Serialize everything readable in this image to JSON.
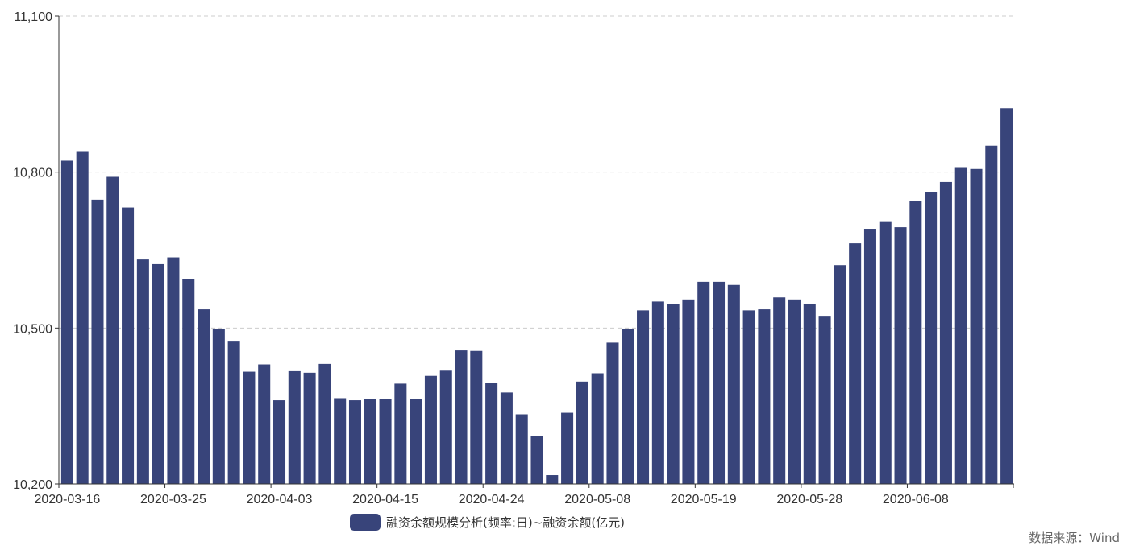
{
  "chart_data": {
    "type": "bar",
    "categories": [
      "2020-03-16",
      "2020-03-17",
      "2020-03-18",
      "2020-03-19",
      "2020-03-20",
      "2020-03-23",
      "2020-03-24",
      "2020-03-25",
      "2020-03-26",
      "2020-03-27",
      "2020-03-30",
      "2020-03-31",
      "2020-04-01",
      "2020-04-02",
      "2020-04-03",
      "2020-04-07",
      "2020-04-08",
      "2020-04-09",
      "2020-04-10",
      "2020-04-13",
      "2020-04-14",
      "2020-04-15",
      "2020-04-16",
      "2020-04-17",
      "2020-04-20",
      "2020-04-21",
      "2020-04-22",
      "2020-04-23",
      "2020-04-24",
      "2020-04-27",
      "2020-04-28",
      "2020-04-29",
      "2020-04-30",
      "2020-05-06",
      "2020-05-07",
      "2020-05-08",
      "2020-05-11",
      "2020-05-12",
      "2020-05-13",
      "2020-05-14",
      "2020-05-15",
      "2020-05-18",
      "2020-05-19",
      "2020-05-20",
      "2020-05-21",
      "2020-05-22",
      "2020-05-25",
      "2020-05-26",
      "2020-05-27",
      "2020-05-28",
      "2020-05-29",
      "2020-06-01",
      "2020-06-02",
      "2020-06-03",
      "2020-06-04",
      "2020-06-05",
      "2020-06-08",
      "2020-06-09",
      "2020-06-10",
      "2020-06-11",
      "2020-06-12",
      "2020-06-15",
      "2020-06-16"
    ],
    "series": [
      {
        "name": "融资余额规模分析(频率:日)~融资余额(亿元)",
        "values": [
          10822,
          10839,
          10747,
          10791,
          10732,
          10632,
          10623,
          10636,
          10594,
          10536,
          10499,
          10474,
          10416,
          10430,
          10361,
          10417,
          10414,
          10431,
          10365,
          10361,
          10363,
          10363,
          10393,
          10364,
          10408,
          10418,
          10457,
          10456,
          10395,
          10376,
          10334,
          10292,
          10217,
          10337,
          10397,
          10413,
          10472,
          10499,
          10534,
          10551,
          10546,
          10555,
          10589,
          10589,
          10583,
          10534,
          10536,
          10559,
          10555,
          10547,
          10522,
          10621,
          10663,
          10691,
          10704,
          10694,
          10744,
          10761,
          10781,
          10808,
          10806,
          10851,
          10923
        ]
      }
    ],
    "tick_labels": [
      "2020-03-16",
      "2020-03-25",
      "2020-04-03",
      "2020-04-15",
      "2020-04-24",
      "2020-05-08",
      "2020-05-19",
      "2020-05-28",
      "2020-06-08"
    ],
    "tick_every": 7,
    "yticks": [
      "10,200",
      "10,500",
      "10,800",
      "11,100"
    ],
    "ylim": [
      10200,
      11100
    ],
    "grid": true,
    "legend_position": "bottom-center",
    "bar_color": "#38447a"
  },
  "source": "数据来源：Wind"
}
